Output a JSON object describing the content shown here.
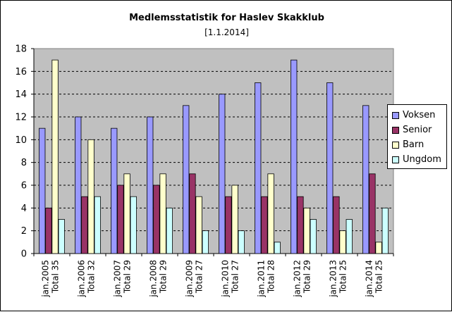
{
  "chart_data": {
    "type": "bar",
    "title": "Medlemsstatistik for Haslev Skakklub",
    "subtitle": "[1.1.2014]",
    "xlabel": "",
    "ylabel": "",
    "ylim": [
      0,
      18
    ],
    "ytick_step": 2,
    "grid": "dashed horizontal",
    "legend_position": "right",
    "plot_background": "#c0c0c0",
    "categories": [
      [
        "jan.2005",
        "Total 35"
      ],
      [
        "jan.2006",
        "Total 32"
      ],
      [
        "jan.2007",
        "Total 29"
      ],
      [
        "jan.2008",
        "Total 29"
      ],
      [
        "jan.2009",
        "Total 27"
      ],
      [
        "jan.2010",
        "Total 27"
      ],
      [
        "jan.2011",
        "Total 28"
      ],
      [
        "jan.2012",
        "Total 29"
      ],
      [
        "jan.2013",
        "Total 25"
      ],
      [
        "jan.2014",
        "Total 25"
      ]
    ],
    "series": [
      {
        "name": "Voksen",
        "color": "#9999ff",
        "values": [
          11,
          12,
          11,
          12,
          13,
          14,
          15,
          17,
          15,
          13
        ]
      },
      {
        "name": "Senior",
        "color": "#993366",
        "values": [
          4,
          5,
          6,
          6,
          7,
          5,
          5,
          5,
          5,
          7
        ]
      },
      {
        "name": "Barn",
        "color": "#ffffcc",
        "values": [
          17,
          10,
          7,
          7,
          5,
          6,
          7,
          4,
          2,
          1
        ]
      },
      {
        "name": "Ungdom",
        "color": "#ccffff",
        "values": [
          3,
          5,
          5,
          4,
          2,
          2,
          1,
          3,
          3,
          4
        ]
      }
    ]
  }
}
